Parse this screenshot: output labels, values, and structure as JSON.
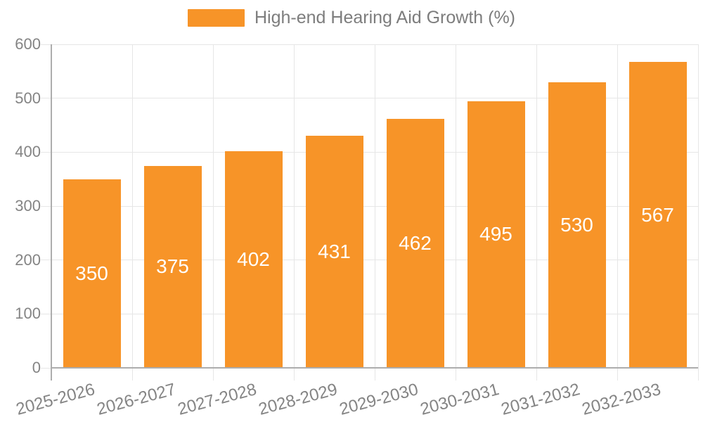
{
  "legend": {
    "label": "High-end Hearing Aid Growth (%)"
  },
  "colors": {
    "bar": "#f79428",
    "grid": "#e6e6e6",
    "axis_line": "#adadad",
    "axis_text": "#848484",
    "value_label_text": "#ffffff",
    "legend_text": "#7d7d7d"
  },
  "chart_data": {
    "type": "bar",
    "title": "",
    "xlabel": "",
    "ylabel": "",
    "categories": [
      "2025-2026",
      "2026-2027",
      "2027-2028",
      "2028-2029",
      "2029-2030",
      "2030-2031",
      "2031-2032",
      "2032-2033"
    ],
    "series": [
      {
        "name": "High-end Hearing Aid Growth (%)",
        "values": [
          350,
          375,
          402,
          431,
          462,
          495,
          530,
          567
        ]
      }
    ],
    "value_labels": {
      "visible": true,
      "position": "inside-center",
      "values": [
        "350",
        "375",
        "402",
        "431",
        "462",
        "495",
        "530",
        "567"
      ]
    },
    "ylim": [
      0,
      600
    ],
    "yticks": [
      0,
      100,
      200,
      300,
      400,
      500,
      600
    ],
    "grid": "horizontal-and-vertical",
    "legend_position": "top-center",
    "bar_color": "#f79428"
  }
}
